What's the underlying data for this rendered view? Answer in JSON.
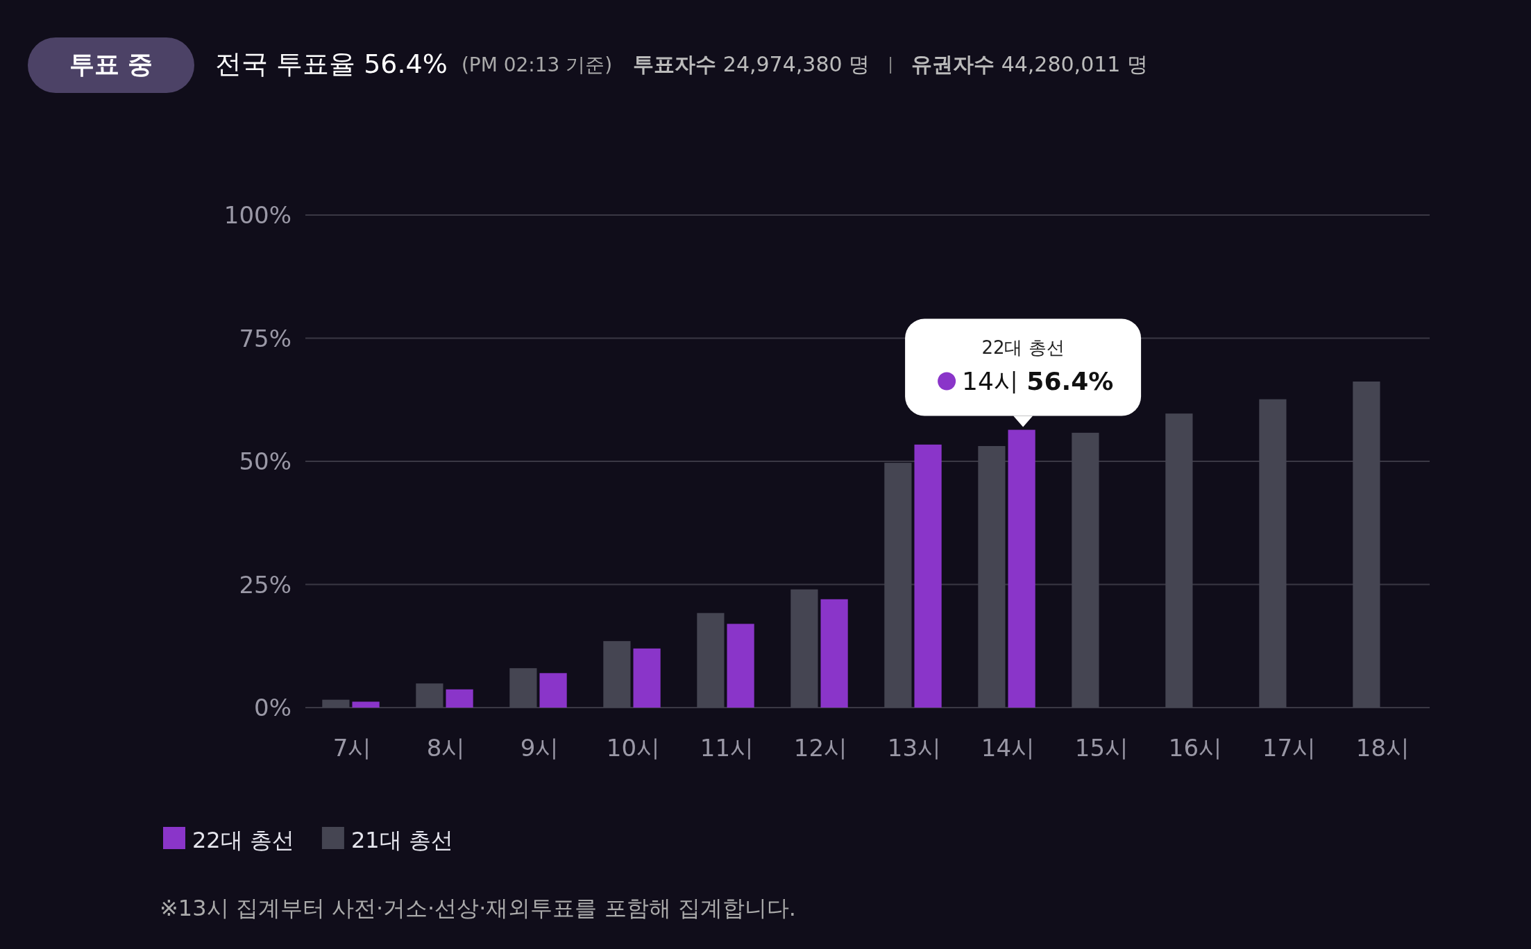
{
  "chart_data": {
    "type": "bar",
    "title": "전국 투표율 56.4%",
    "subtitle": "(PM 02:13 기준)",
    "categories": [
      "7시",
      "8시",
      "9시",
      "10시",
      "11시",
      "12시",
      "13시",
      "14시",
      "15시",
      "16시",
      "17시",
      "18시"
    ],
    "series": [
      {
        "name": "22대 총선",
        "color": "#8a35c9",
        "values": [
          1.2,
          3.7,
          7.0,
          12.0,
          17.0,
          22.0,
          53.4,
          56.4,
          null,
          null,
          null,
          null
        ]
      },
      {
        "name": "21대 총선",
        "color": "#454552",
        "values": [
          1.6,
          4.9,
          8.0,
          13.5,
          19.2,
          24.0,
          49.7,
          53.1,
          55.8,
          59.7,
          62.6,
          66.2
        ]
      }
    ],
    "ylim": [
      0,
      100
    ],
    "yticks": [
      {
        "value": 0,
        "label": "0%"
      },
      {
        "value": 25,
        "label": "25%"
      },
      {
        "value": 50,
        "label": "50%"
      },
      {
        "value": 75,
        "label": "75%"
      },
      {
        "value": 100,
        "label": "100%"
      }
    ],
    "grid": "y",
    "legend": "bottom left",
    "annotations": [
      "투표 중",
      "**투표자수** 24,974,380 명",
      "**유권자수** 44,280,011 명",
      "※13시 집계부터 사전·거소·선상·재외투표를 포함해 집계합니다.",
      {
        "text": "14시 **56.4%**",
        "x": "14시",
        "y": 56.4
      }
    ]
  }
}
